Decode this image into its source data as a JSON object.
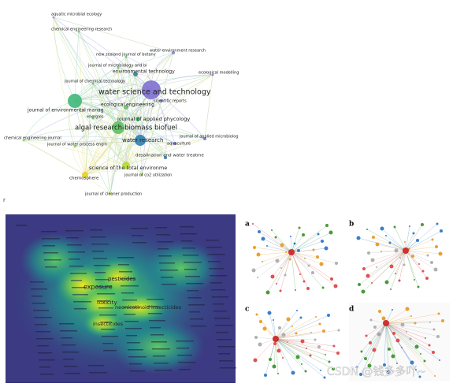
{
  "network": {
    "nodes": [
      {
        "label": "aquatic microbial ecology"
      },
      {
        "label": "chemical engineering research"
      },
      {
        "label": "new zealand journal of botany"
      },
      {
        "label": "water environment research"
      },
      {
        "label": "journal of microbiology and bi"
      },
      {
        "label": "environmental technology"
      },
      {
        "label": "ecological modelling"
      },
      {
        "label": "journal of chemical technology"
      },
      {
        "label": "water science and technology"
      },
      {
        "label": "scientific reports"
      },
      {
        "label": "ecological engineering"
      },
      {
        "label": "journal of environmental manag"
      },
      {
        "label": "energies"
      },
      {
        "label": "journal of applied phycology"
      },
      {
        "label": "algal research-biomass biofuel"
      },
      {
        "label": "chemical engineering journal"
      },
      {
        "label": "journal of applied microbiolog"
      },
      {
        "label": "water research"
      },
      {
        "label": "journal of water process engin"
      },
      {
        "label": "aquaculture"
      },
      {
        "label": "desalination and water treatme"
      },
      {
        "label": "science of the total environme"
      },
      {
        "label": "journal of co2 utilization"
      },
      {
        "label": "chemosphere"
      },
      {
        "label": "journal of cleaner production"
      }
    ]
  },
  "side_label": "r",
  "heatmap": {
    "labels": [
      "pesticides",
      "exposure",
      "toxicity",
      "neonicotinoid insecticides",
      "insecticides"
    ]
  },
  "panels": {
    "labels": [
      "a",
      "b",
      "c",
      "d"
    ]
  },
  "watermark": "CSDN @钱多多吖~"
}
